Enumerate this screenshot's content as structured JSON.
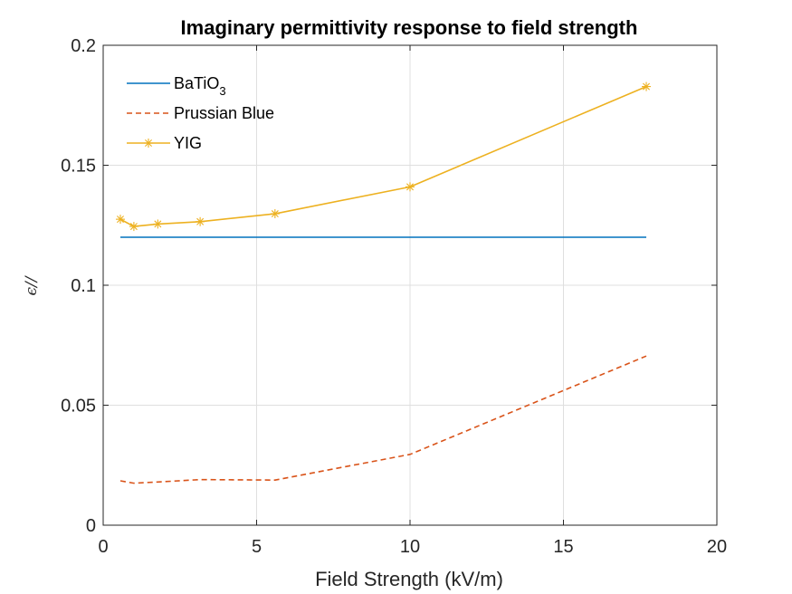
{
  "chart_data": {
    "type": "line",
    "title": "Imaginary permittivity response to field strength",
    "xlabel": "Field Strength (kV/m)",
    "ylabel": "ϵ//",
    "xlim": [
      0,
      20
    ],
    "ylim": [
      0,
      0.2
    ],
    "xticks": [
      0,
      5,
      10,
      15,
      20
    ],
    "xtick_labels": [
      "0",
      "5",
      "10",
      "15",
      "20"
    ],
    "yticks": [
      0,
      0.05,
      0.1,
      0.15,
      0.2
    ],
    "ytick_labels": [
      "0",
      "0.05",
      "0.1",
      "0.15",
      "0.2"
    ],
    "grid": true,
    "legend_position": "top-left",
    "series": [
      {
        "name": "BaTiO",
        "name_subscript": "3",
        "color": "#0072BD",
        "line_style": "solid",
        "marker": "none",
        "x": [
          0.56,
          17.7
        ],
        "y": [
          0.12,
          0.12
        ]
      },
      {
        "name": "Prussian Blue",
        "color": "#D95319",
        "line_style": "dashed",
        "marker": "none",
        "x": [
          0.56,
          1.0,
          1.78,
          3.16,
          5.6,
          10.0,
          17.7
        ],
        "y": [
          0.0185,
          0.0175,
          0.018,
          0.019,
          0.0188,
          0.0295,
          0.0705
        ]
      },
      {
        "name": "YIG",
        "color": "#EDB120",
        "line_style": "solid",
        "marker": "asterisk",
        "x": [
          0.56,
          1.0,
          1.78,
          3.16,
          5.6,
          10.0,
          17.7
        ],
        "y": [
          0.1275,
          0.1245,
          0.1255,
          0.1265,
          0.1298,
          0.141,
          0.1828
        ]
      }
    ]
  }
}
